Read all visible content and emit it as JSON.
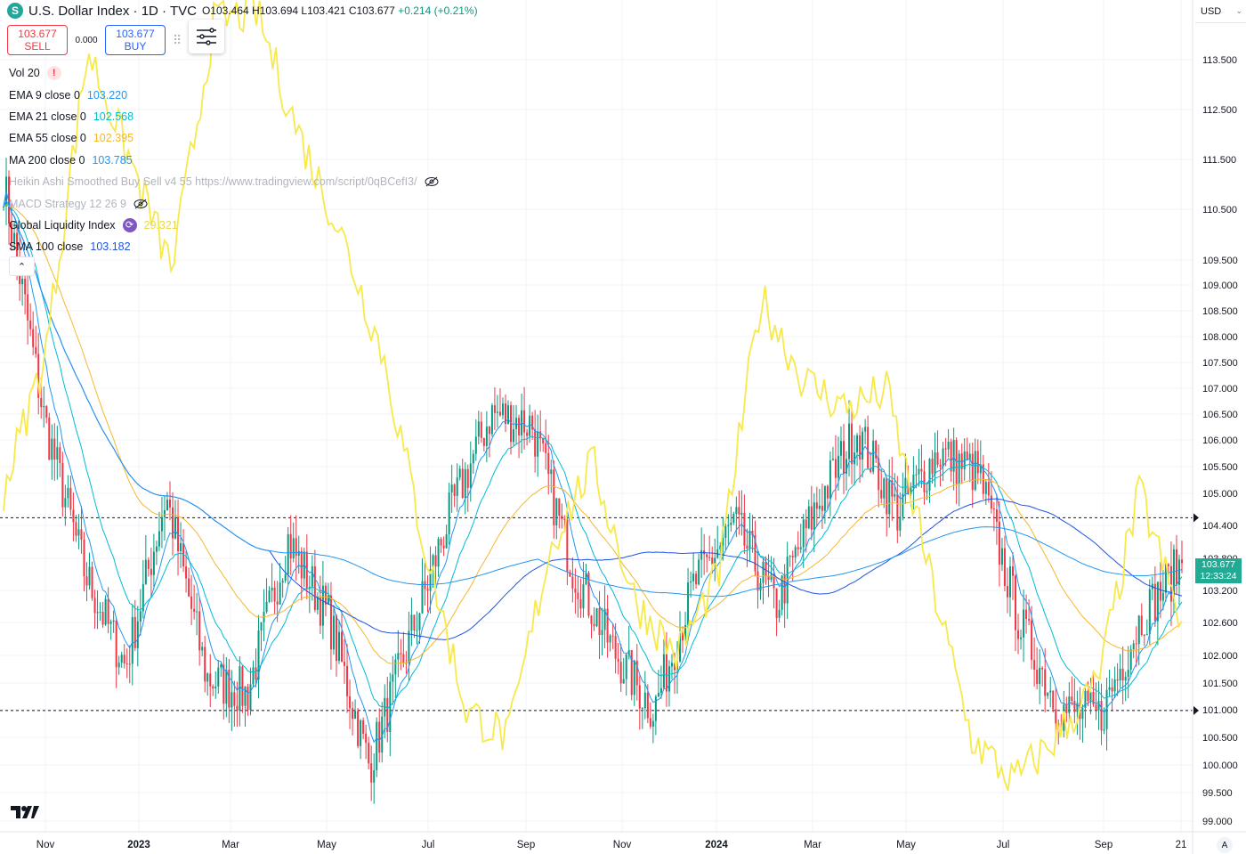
{
  "header": {
    "symbol_icon": "S",
    "title": "U.S. Dollar Index · 1D · TVC",
    "open": "O103.464",
    "high": "H103.694",
    "low": "L103.421",
    "close": "C103.677",
    "change": "+0.214 (+0.21%)"
  },
  "trade": {
    "sell_price": "103.677",
    "sell_label": "SELL",
    "spread": "0.000",
    "buy_price": "103.677",
    "buy_label": "BUY"
  },
  "legend": [
    {
      "name": "Vol 20",
      "value": "",
      "badge": "!",
      "faded": false,
      "color": "#131722"
    },
    {
      "name": "EMA 9 close 0",
      "value": "103.220",
      "faded": false,
      "color": "#2196f3"
    },
    {
      "name": "EMA 21 close 0",
      "value": "102.568",
      "faded": false,
      "color": "#00bcd4"
    },
    {
      "name": "EMA 55 close 0",
      "value": "102.395",
      "faded": false,
      "color": "#f5b82e"
    },
    {
      "name": "MA 200 close 0",
      "value": "103.785",
      "faded": false,
      "color": "#2196f3"
    },
    {
      "name": "Heikin Ashi Smoothed Buy Sell v4 55 https://www.tradingview.com/script/0qBCefI3/",
      "value": "",
      "faded": true,
      "hidden_icon": true
    },
    {
      "name": "MACD Strategy 12 26 9",
      "value": "",
      "faded": true,
      "hidden_icon": true
    },
    {
      "name": "Global Liquidity Index",
      "value": "29.321",
      "faded": false,
      "color": "#e8d84a",
      "sync_icon": true
    },
    {
      "name": "SMA 100 close",
      "value": "103.182",
      "faded": false,
      "color": "#1e53e5"
    }
  ],
  "axis": {
    "currency": "USD",
    "price_labels": [
      "113.500",
      "112.500",
      "111.500",
      "110.500",
      "109.500",
      "109.000",
      "108.500",
      "108.000",
      "107.500",
      "107.000",
      "106.500",
      "106.000",
      "105.500",
      "105.000",
      "104.400",
      "103.800",
      "103.200",
      "102.600",
      "102.000",
      "101.500",
      "101.000",
      "100.500",
      "100.000",
      "99.500",
      "99.000"
    ],
    "time_labels": [
      "Nov",
      "2023",
      "Mar",
      "May",
      "Jul",
      "Sep",
      "Nov",
      "2024",
      "Mar",
      "May",
      "Jul",
      "Sep",
      "21"
    ],
    "last_price": "103.677",
    "countdown": "12:33:24",
    "auto_label": "A"
  },
  "colors": {
    "candle_up": "#089981",
    "candle_down": "#f23645",
    "liquidity": "#f7e94a",
    "ema9": "#2196f3",
    "ema21": "#00bcd4",
    "ema55": "#f5b82e",
    "ma200": "#1e53e5"
  },
  "chart_data": {
    "type": "candlestick",
    "title": "U.S. Dollar Index · 1D · TVC",
    "y_range": [
      98.8,
      113.9
    ],
    "x_labels": [
      "Nov",
      "2023",
      "Mar",
      "May",
      "Jul",
      "Sep",
      "Nov",
      "2024",
      "Mar",
      "May",
      "Jul",
      "Sep",
      "21"
    ],
    "close_path": [
      [
        "Oct 2022",
        110.6
      ],
      [
        "Nov 2022",
        106.3
      ],
      [
        "2023",
        103.5
      ],
      [
        "Feb 2023",
        101.8
      ],
      [
        "Mar 2023",
        104.9
      ],
      [
        "Apr 2023",
        101.6
      ],
      [
        "May 2023",
        101.3
      ],
      [
        "Jun 2023",
        104.1
      ],
      [
        "Jun 2023",
        102.7
      ],
      [
        "Jul 2023",
        100.0
      ],
      [
        "Aug 2023",
        102.3
      ],
      [
        "Sep 2023",
        104.6
      ],
      [
        "Oct 2023",
        106.4
      ],
      [
        "Nov 2023",
        106.2
      ],
      [
        "Nov 2023",
        103.6
      ],
      [
        "Dec 2023",
        102.1
      ],
      [
        "2024",
        101.0
      ],
      [
        "Jan 2024",
        103.3
      ],
      [
        "Feb 2024",
        104.4
      ],
      [
        "Mar 2024",
        102.9
      ],
      [
        "Apr 2024",
        104.7
      ],
      [
        "Apr 2024",
        106.1
      ],
      [
        "May 2024",
        104.6
      ],
      [
        "Jun 2024",
        105.7
      ],
      [
        "Jul 2024",
        105.3
      ],
      [
        "Aug 2024",
        102.6
      ],
      [
        "Sep 2024",
        101.0
      ],
      [
        "Sep 2024",
        100.9
      ],
      [
        "Oct 2024",
        102.7
      ],
      [
        "Oct 21 2024",
        103.677
      ]
    ],
    "global_liquidity_index_path": [
      105,
      107.5,
      113,
      111,
      109,
      113.5,
      113.7,
      111.5,
      109.7,
      107.5,
      104,
      101,
      100.5,
      104,
      105.5,
      103,
      102,
      103.5,
      108.5,
      107,
      106.5,
      106.8,
      103.5,
      100.5,
      99.7,
      100.5,
      101.5,
      105,
      102.5
    ],
    "horizontal_levels": [
      104.5,
      101.0
    ],
    "series": [
      {
        "name": "EMA 9 close 0",
        "last": 103.22
      },
      {
        "name": "EMA 21 close 0",
        "last": 102.568
      },
      {
        "name": "EMA 55 close 0",
        "last": 102.395
      },
      {
        "name": "MA 200 close 0",
        "last": 103.785
      },
      {
        "name": "Global Liquidity Index",
        "last": 29.321
      },
      {
        "name": "SMA 100 close",
        "last": 103.182
      }
    ],
    "grid": true
  }
}
